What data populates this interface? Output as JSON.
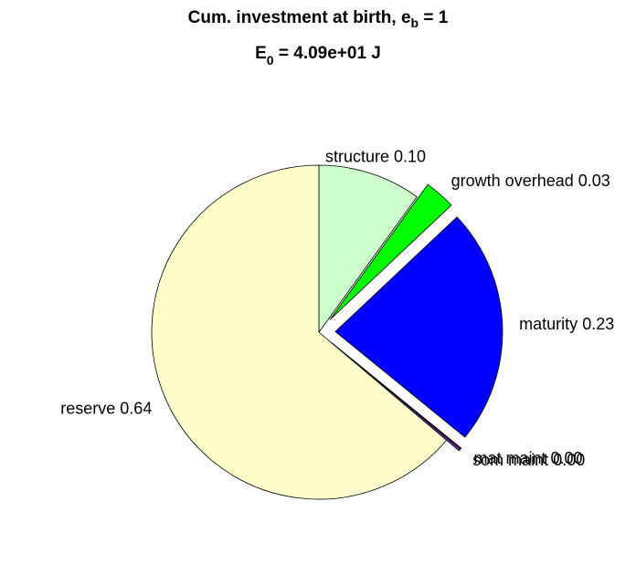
{
  "chart_data": {
    "type": "pie",
    "title": {
      "text": "Cum. investment at birth, e",
      "subscript": "b",
      "suffix": " = 1"
    },
    "subtitle": {
      "text": "E",
      "subscript": "0",
      "suffix": " = 4.09e+01 J"
    },
    "categories": [
      "structure",
      "growth overhead",
      "maturity",
      "mat maint",
      "som maint",
      "reserve"
    ],
    "values": [
      0.1,
      0.03,
      0.23,
      0.001,
      0.002,
      0.64
    ],
    "value_labels": [
      "0.10",
      "0.03",
      "0.23",
      "0.00",
      "0.00",
      "0.64"
    ],
    "colors": [
      "#ccffcc",
      "#00ff00",
      "#0000ff",
      "#cc0000",
      "#6633cc",
      "#ffffcc"
    ],
    "explode": [
      false,
      true,
      true,
      true,
      true,
      false
    ]
  }
}
